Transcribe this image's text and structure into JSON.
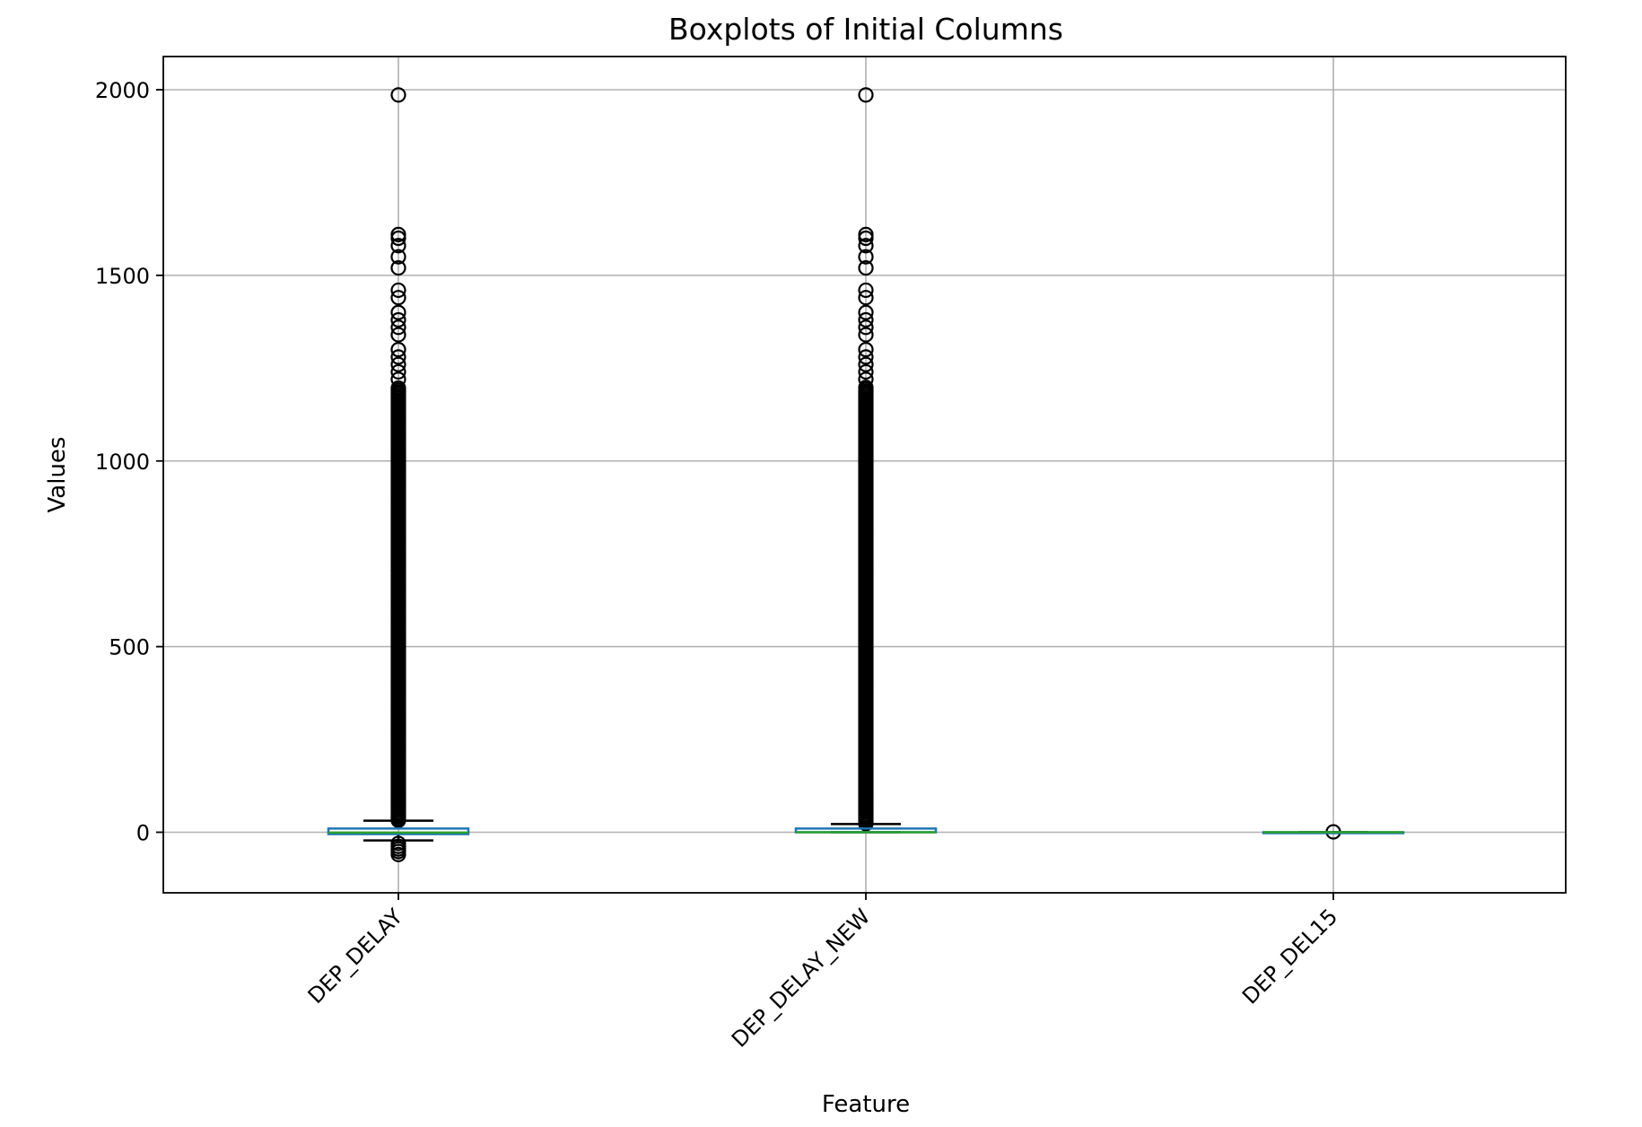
{
  "chart_data": {
    "type": "boxplot",
    "title": "Boxplots of Initial Columns",
    "xlabel": "Feature",
    "ylabel": "Values",
    "ylim": [
      -165,
      2090
    ],
    "yticks": [
      0,
      500,
      1000,
      1500,
      2000
    ],
    "grid": true,
    "categories": [
      "DEP_DELAY",
      "DEP_DELAY_NEW",
      "DEP_DEL15"
    ],
    "boxes": [
      {
        "name": "DEP_DELAY",
        "whisker_low": -22,
        "q1": -5,
        "median": -1,
        "q3": 10,
        "whisker_high": 31,
        "outliers_high_range": [
          32,
          1200
        ],
        "outliers_high_sparse": [
          1220,
          1240,
          1260,
          1280,
          1300,
          1340,
          1360,
          1380,
          1400,
          1440,
          1460,
          1520,
          1550,
          1580,
          1600,
          1610,
          1986
        ],
        "outliers_low": [
          -30,
          -38,
          -45,
          -52,
          -60
        ]
      },
      {
        "name": "DEP_DELAY_NEW",
        "whisker_low": 0,
        "q1": 0,
        "median": 0,
        "q3": 10,
        "whisker_high": 22,
        "outliers_high_range": [
          23,
          1200
        ],
        "outliers_high_sparse": [
          1220,
          1240,
          1260,
          1280,
          1300,
          1340,
          1360,
          1380,
          1400,
          1440,
          1460,
          1520,
          1550,
          1580,
          1600,
          1610,
          1986
        ],
        "outliers_low": []
      },
      {
        "name": "DEP_DEL15",
        "whisker_low": 0,
        "q1": 0,
        "median": 0,
        "q3": 0,
        "whisker_high": 0,
        "outliers_high_range": null,
        "outliers_high_sparse": [
          1
        ],
        "outliers_low": []
      }
    ],
    "colors": {
      "box": "#1f77b4",
      "median": "#2ca02c",
      "whisker": "#000000",
      "grid": "#b0b0b0"
    }
  }
}
